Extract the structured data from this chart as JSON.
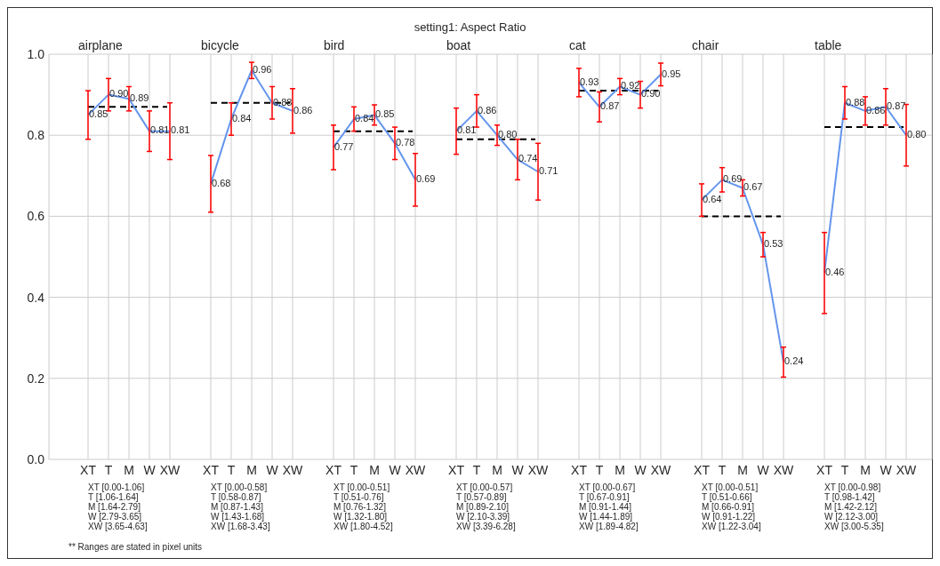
{
  "chart_data": [
    {
      "type": "line",
      "subtitle": "airplane",
      "categories": [
        "XT",
        "T",
        "M",
        "W",
        "XW"
      ],
      "series": [
        {
          "color": "#6495ed",
          "values": [
            0.85,
            0.9,
            0.89,
            0.81,
            0.81
          ],
          "errors": [
            0.06,
            0.04,
            0.03,
            0.05,
            0.07
          ],
          "value_labels": [
            "0.85",
            "0.90",
            "0.89",
            "0.81",
            "0.81"
          ]
        }
      ],
      "ref_lines": [
        {
          "axis": "y",
          "value": 0.87,
          "color": "#000000",
          "line_style": "dashed"
        }
      ],
      "ylim": [
        0,
        1
      ],
      "yticks": [
        {
          "value": 0,
          "label": "0.0"
        },
        0.2,
        0.4,
        0.6,
        0.8,
        {
          "value": 1,
          "label": "1.0"
        }
      ],
      "grid": true,
      "annotations": [
        "XT [0.00-1.06]",
        "T [1.06-1.64]",
        "M [1.64-2.79]",
        "W [2.79-3.65]",
        "XW [3.65-4.63]",
        "** Ranges are stated in pixel units"
      ]
    },
    {
      "type": "line",
      "subtitle": "bicycle",
      "categories": [
        "XT",
        "T",
        "M",
        "W",
        "XW"
      ],
      "series": [
        {
          "color": "#6495ed",
          "values": [
            0.68,
            0.84,
            0.96,
            0.88,
            0.86
          ],
          "errors": [
            0.07,
            0.04,
            0.02,
            0.04,
            0.055
          ],
          "value_labels": [
            "0.68",
            "0.84",
            "0.96",
            "0.88",
            "0.86"
          ]
        }
      ],
      "ref_lines": [
        {
          "axis": "y",
          "value": 0.88,
          "color": "#000000",
          "line_style": "dashed"
        }
      ],
      "ylim": [
        0,
        1
      ],
      "grid": true,
      "tick_labels": "x",
      "annotations": [
        "XT [0.00-0.58]",
        "T [0.58-0.87]",
        "M [0.87-1.43]",
        "W [1.43-1.68]",
        "XW [1.68-3.43]"
      ]
    },
    {
      "type": "line",
      "subtitle": "bird",
      "categories": [
        "XT",
        "T",
        "M",
        "W",
        "XW"
      ],
      "series": [
        {
          "color": "#6495ed",
          "values": [
            0.77,
            0.84,
            0.85,
            0.78,
            0.69
          ],
          "errors": [
            0.055,
            0.03,
            0.025,
            0.04,
            0.065
          ],
          "value_labels": [
            "0.77",
            "0.84",
            "0.85",
            "0.78",
            "0.69"
          ]
        }
      ],
      "ref_lines": [
        {
          "axis": "y",
          "value": 0.81,
          "color": "#000000",
          "line_style": "dashed"
        }
      ],
      "ylim": [
        0,
        1
      ],
      "grid": true,
      "tick_labels": "x",
      "annotations": [
        "XT [0.00-0.51]",
        "T [0.51-0.76]",
        "M [0.76-1.32]",
        "W [1.32-1.80]",
        "XW [1.80-4.52]"
      ]
    },
    {
      "type": "line",
      "title": "setting1: Aspect Ratio",
      "subtitle": "boat",
      "categories": [
        "XT",
        "T",
        "M",
        "W",
        "XW"
      ],
      "series": [
        {
          "color": "#6495ed",
          "values": [
            0.81,
            0.86,
            0.8,
            0.74,
            0.71
          ],
          "errors": [
            0.057,
            0.04,
            0.025,
            0.05,
            0.07
          ],
          "value_labels": [
            "0.81",
            "0.86",
            "0.80",
            "0.74",
            "0.71"
          ]
        }
      ],
      "ref_lines": [
        {
          "axis": "y",
          "value": 0.79,
          "color": "#000000",
          "line_style": "dashed"
        }
      ],
      "ylim": [
        0,
        1
      ],
      "grid": true,
      "tick_labels": "x",
      "annotations": [
        "XT [0.00-0.57]",
        "T [0.57-0.89]",
        "M [0.89-2.10]",
        "W [2.10-3.39]",
        "XW [3.39-6.28]"
      ]
    },
    {
      "type": "line",
      "subtitle": "cat",
      "categories": [
        "XT",
        "T",
        "M",
        "W",
        "XW"
      ],
      "series": [
        {
          "color": "#6495ed",
          "values": [
            0.93,
            0.87,
            0.92,
            0.9,
            0.95
          ],
          "errors": [
            0.035,
            0.037,
            0.02,
            0.033,
            0.028
          ],
          "value_labels": [
            "0.93",
            "0.87",
            "0.92",
            "0.90",
            "0.95"
          ]
        }
      ],
      "ref_lines": [
        {
          "axis": "y",
          "value": 0.91,
          "color": "#000000",
          "line_style": "dashed"
        }
      ],
      "ylim": [
        0,
        1
      ],
      "grid": true,
      "tick_labels": "x",
      "annotations": [
        "XT [0.00-0.67]",
        "T [0.67-0.91]",
        "M [0.91-1.44]",
        "W [1.44-1.89]",
        "XW [1.89-4.82]"
      ]
    },
    {
      "type": "line",
      "subtitle": "chair",
      "categories": [
        "XT",
        "T",
        "M",
        "W",
        "XW"
      ],
      "series": [
        {
          "color": "#6495ed",
          "values": [
            0.64,
            0.69,
            0.67,
            0.53,
            0.24
          ],
          "errors": [
            0.04,
            0.03,
            0.02,
            0.03,
            0.037
          ],
          "value_labels": [
            "0.64",
            "0.69",
            "0.67",
            "0.53",
            "0.24"
          ]
        }
      ],
      "ref_lines": [
        {
          "axis": "y",
          "value": 0.6,
          "color": "#000000",
          "line_style": "dashed"
        }
      ],
      "ylim": [
        0,
        1
      ],
      "grid": true,
      "tick_labels": "x",
      "annotations": [
        "XT [0.00-0.51]",
        "T [0.51-0.66]",
        "M [0.66-0.91]",
        "W [0.91-1.22]",
        "XW [1.22-3.04]"
      ]
    },
    {
      "type": "line",
      "subtitle": "table",
      "categories": [
        "XT",
        "T",
        "M",
        "W",
        "XW"
      ],
      "series": [
        {
          "color": "#6495ed",
          "values": [
            0.46,
            0.88,
            0.86,
            0.87,
            0.8
          ],
          "errors": [
            0.1,
            0.04,
            0.035,
            0.045,
            0.076
          ],
          "value_labels": [
            "0.46",
            "0.88",
            "0.86",
            "0.87",
            "0.80"
          ]
        }
      ],
      "ref_lines": [
        {
          "axis": "y",
          "value": 0.82,
          "color": "#000000",
          "line_style": "dashed"
        }
      ],
      "ylim": [
        0,
        1
      ],
      "grid": true,
      "tick_labels": "x",
      "annotations": [
        "XT [0.00-0.98]",
        "T [0.98-1.42]",
        "M [1.42-2.12]",
        "W [2.12-3.00]",
        "XW [3.00-5.35]"
      ]
    }
  ]
}
